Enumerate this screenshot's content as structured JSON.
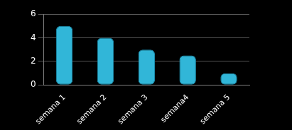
{
  "chart_data": {
    "type": "bar",
    "categories": [
      "semana 1",
      "semana 2",
      "semana 3",
      "semana4",
      "semana 5"
    ],
    "values": [
      5,
      4,
      3,
      2.5,
      1
    ],
    "color": "#31b6d8",
    "ylim": [
      0,
      6
    ],
    "yticks": [
      0,
      2,
      4,
      6
    ],
    "grid": true
  }
}
